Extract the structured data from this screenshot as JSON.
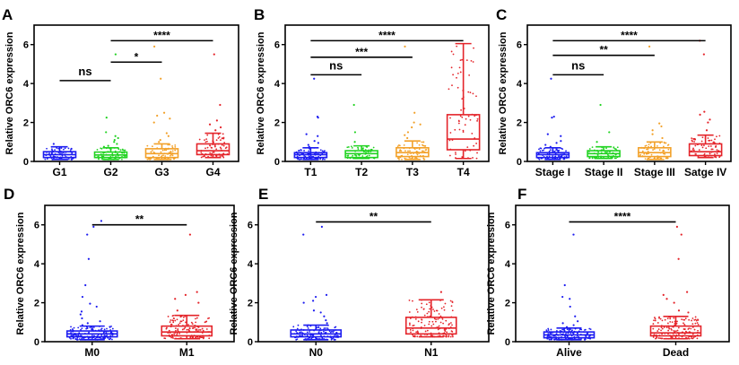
{
  "colors": {
    "blue": "#1c1cf0",
    "green": "#22d322",
    "orange": "#f2a12a",
    "red": "#e4242a",
    "axis": "#000000"
  },
  "chart_data": [
    {
      "type": "box",
      "panel": "A",
      "ylabel": "Relative ORC6 expression",
      "ylim": [
        0,
        7
      ],
      "yticks": [
        0,
        2,
        4,
        6
      ],
      "categories": [
        "G1",
        "G2",
        "G3",
        "G4"
      ],
      "series_colors": [
        "blue",
        "green",
        "orange",
        "red"
      ],
      "boxes": [
        {
          "min": 0.1,
          "q1": 0.2,
          "median": 0.35,
          "q3": 0.5,
          "max": 0.75,
          "outliers": [
            0.9
          ]
        },
        {
          "min": 0.1,
          "q1": 0.2,
          "median": 0.33,
          "q3": 0.48,
          "max": 0.7,
          "outliers": [
            0.75,
            0.8,
            0.9,
            1.0,
            1.1,
            1.2,
            1.3,
            1.5,
            2.25,
            5.5
          ]
        },
        {
          "min": 0.1,
          "q1": 0.2,
          "median": 0.4,
          "q3": 0.65,
          "max": 0.9,
          "outliers": [
            1.0,
            1.1,
            1.3,
            1.45,
            2.0,
            2.2,
            2.35,
            2.5,
            4.25,
            5.9
          ]
        },
        {
          "min": 0.2,
          "q1": 0.35,
          "median": 0.55,
          "q3": 0.9,
          "max": 1.45,
          "outliers": [
            1.6,
            1.75,
            1.9,
            2.1,
            2.9,
            5.5
          ]
        }
      ],
      "significance": [
        {
          "from": 0,
          "to": 1,
          "y": 4.15,
          "label": "ns"
        },
        {
          "from": 1,
          "to": 2,
          "y": 5.1,
          "label": "*"
        },
        {
          "from": 1,
          "to": 3,
          "y": 6.2,
          "label": "****"
        }
      ]
    },
    {
      "type": "box",
      "panel": "B",
      "ylabel": "Relative ORC6 expression",
      "ylim": [
        0,
        7
      ],
      "yticks": [
        0,
        2,
        4,
        6
      ],
      "categories": [
        "T1",
        "T2",
        "T3",
        "T4"
      ],
      "series_colors": [
        "blue",
        "green",
        "orange",
        "red"
      ],
      "boxes": [
        {
          "min": 0.1,
          "q1": 0.2,
          "median": 0.35,
          "q3": 0.45,
          "max": 0.7,
          "outliers": [
            0.75,
            0.85,
            0.95,
            1.05,
            1.3,
            1.4,
            2.25,
            2.3,
            4.25
          ]
        },
        {
          "min": 0.15,
          "q1": 0.2,
          "median": 0.4,
          "q3": 0.55,
          "max": 0.8,
          "outliers": [
            1.0,
            1.5,
            2.9
          ]
        },
        {
          "min": 0.1,
          "q1": 0.25,
          "median": 0.45,
          "q3": 0.7,
          "max": 1.05,
          "outliers": [
            1.2,
            1.35,
            1.5,
            1.75,
            1.9,
            2.0,
            2.5,
            5.9
          ]
        },
        {
          "min": 0.15,
          "q1": 0.6,
          "median": 1.15,
          "q3": 2.4,
          "max": 6.05,
          "outliers": []
        }
      ],
      "significance": [
        {
          "from": 0,
          "to": 1,
          "y": 4.45,
          "label": "ns"
        },
        {
          "from": 0,
          "to": 2,
          "y": 5.35,
          "label": "***"
        },
        {
          "from": 0,
          "to": 3,
          "y": 6.2,
          "label": "****"
        }
      ]
    },
    {
      "type": "box",
      "panel": "C",
      "ylabel": "Relative ORC6 expression",
      "ylim": [
        0,
        7
      ],
      "yticks": [
        0,
        2,
        4,
        6
      ],
      "categories": [
        "Stage I",
        "Stage II",
        "Stage III",
        "Satge IV"
      ],
      "series_colors": [
        "blue",
        "green",
        "orange",
        "red"
      ],
      "boxes": [
        {
          "min": 0.1,
          "q1": 0.2,
          "median": 0.35,
          "q3": 0.45,
          "max": 0.7,
          "outliers": [
            0.75,
            0.85,
            0.95,
            1.05,
            1.3,
            1.4,
            2.25,
            2.3,
            4.25
          ]
        },
        {
          "min": 0.15,
          "q1": 0.25,
          "median": 0.4,
          "q3": 0.55,
          "max": 0.75,
          "outliers": [
            1.0,
            1.5,
            2.9
          ]
        },
        {
          "min": 0.1,
          "q1": 0.25,
          "median": 0.45,
          "q3": 0.7,
          "max": 1.0,
          "outliers": [
            1.2,
            1.4,
            1.6,
            1.8,
            1.95,
            5.9
          ]
        },
        {
          "min": 0.2,
          "q1": 0.3,
          "median": 0.5,
          "q3": 0.9,
          "max": 1.35,
          "outliers": [
            1.6,
            2.0,
            2.15,
            2.4,
            2.55,
            5.5,
            6.2
          ]
        }
      ],
      "significance": [
        {
          "from": 0,
          "to": 1,
          "y": 4.45,
          "label": "ns"
        },
        {
          "from": 0,
          "to": 2,
          "y": 5.45,
          "label": "**"
        },
        {
          "from": 0,
          "to": 3,
          "y": 6.2,
          "label": "****"
        }
      ]
    },
    {
      "type": "box",
      "panel": "D",
      "ylabel": "Relative ORC6 expression",
      "ylim": [
        0,
        7
      ],
      "yticks": [
        0,
        2,
        4,
        6
      ],
      "categories": [
        "M0",
        "M1"
      ],
      "series_colors": [
        "blue",
        "red"
      ],
      "boxes": [
        {
          "min": 0.1,
          "q1": 0.25,
          "median": 0.4,
          "q3": 0.55,
          "max": 0.8,
          "outliers": [
            0.85,
            0.95,
            1.05,
            1.2,
            1.4,
            1.55,
            1.8,
            1.95,
            2.3,
            2.9,
            4.25,
            5.5,
            5.9,
            6.2
          ]
        },
        {
          "min": 0.15,
          "q1": 0.3,
          "median": 0.5,
          "q3": 0.8,
          "max": 1.35,
          "outliers": [
            1.6,
            2.0,
            2.2,
            2.4,
            2.55,
            5.5
          ]
        }
      ],
      "significance": [
        {
          "from": 0,
          "to": 1,
          "y": 6.0,
          "label": "**"
        }
      ]
    },
    {
      "type": "box",
      "panel": "E",
      "ylabel": "Relative ORC6 expression",
      "ylim": [
        0,
        7
      ],
      "yticks": [
        0,
        2,
        4,
        6
      ],
      "categories": [
        "N0",
        "N1"
      ],
      "series_colors": [
        "blue",
        "red"
      ],
      "boxes": [
        {
          "min": 0.1,
          "q1": 0.25,
          "median": 0.4,
          "q3": 0.6,
          "max": 0.85,
          "outliers": [
            0.95,
            1.1,
            1.3,
            1.5,
            1.6,
            2.0,
            2.1,
            2.3,
            2.4,
            5.5,
            5.9
          ]
        },
        {
          "min": 0.25,
          "q1": 0.4,
          "median": 0.7,
          "q3": 1.25,
          "max": 2.15,
          "outliers": [
            2.55
          ]
        }
      ],
      "significance": [
        {
          "from": 0,
          "to": 1,
          "y": 6.15,
          "label": "**"
        }
      ]
    },
    {
      "type": "box",
      "panel": "F",
      "ylabel": "Relative ORC6 expression",
      "ylim": [
        0,
        7
      ],
      "yticks": [
        0,
        2,
        4,
        6
      ],
      "categories": [
        "Alive",
        "Dead"
      ],
      "series_colors": [
        "blue",
        "red"
      ],
      "boxes": [
        {
          "min": 0.1,
          "q1": 0.2,
          "median": 0.35,
          "q3": 0.5,
          "max": 0.7,
          "outliers": [
            0.75,
            0.85,
            0.95,
            1.05,
            1.3,
            1.8,
            2.2,
            2.3,
            2.9,
            5.5
          ]
        },
        {
          "min": 0.15,
          "q1": 0.3,
          "median": 0.45,
          "q3": 0.8,
          "max": 1.3,
          "outliers": [
            1.5,
            1.6,
            2.0,
            2.2,
            2.4,
            2.55,
            4.25,
            5.5,
            5.9
          ]
        }
      ],
      "significance": [
        {
          "from": 0,
          "to": 1,
          "y": 6.15,
          "label": "****"
        }
      ]
    }
  ]
}
